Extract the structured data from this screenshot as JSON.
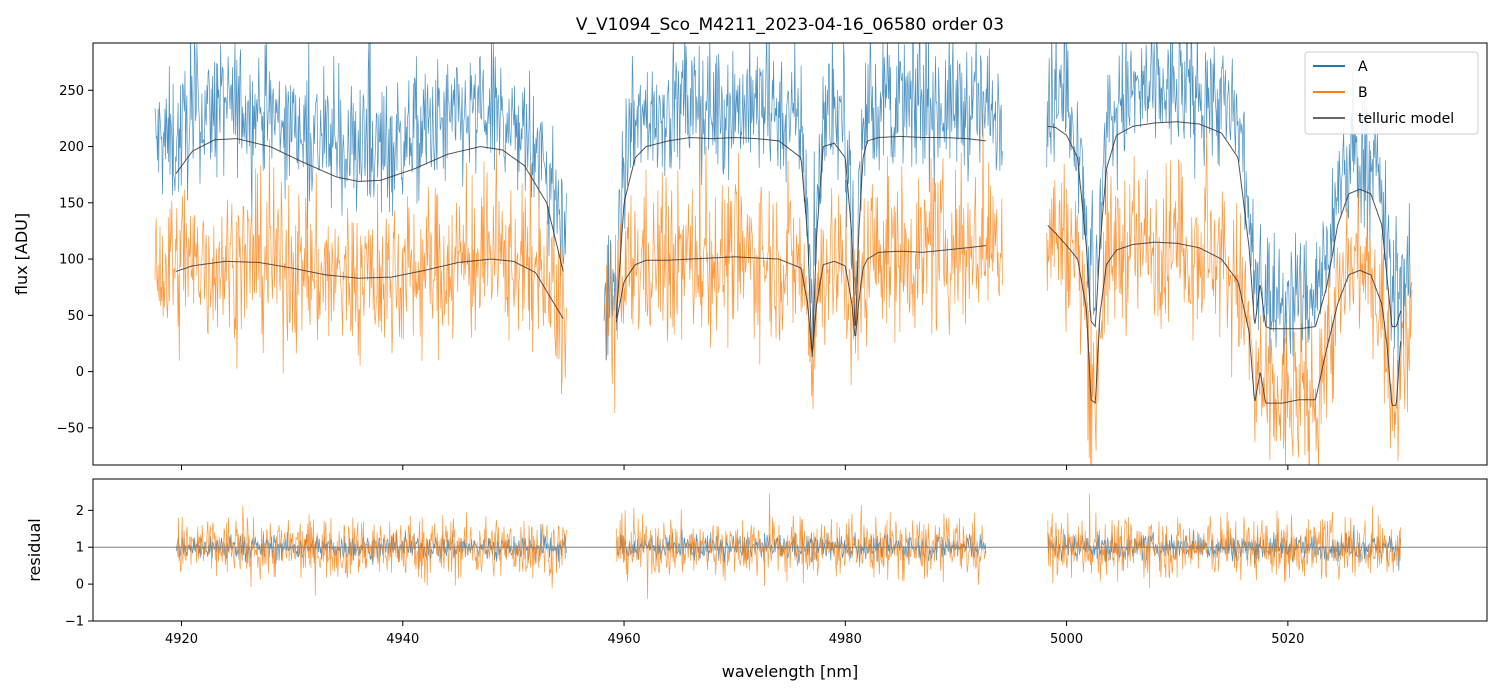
{
  "chart_data": [
    {
      "panel": "flux",
      "type": "line",
      "title": "V_V1094_Sco_M4211_2023-04-16_06580  order 03",
      "xlabel": "",
      "ylabel": "flux [ADU]",
      "xlim": [
        4912,
        5038
      ],
      "ylim": [
        -83,
        292
      ],
      "x_ticks": [
        4920,
        4940,
        4960,
        4980,
        5000,
        5020
      ],
      "x_tick_labels_visible": false,
      "y_ticks": [
        -50,
        0,
        50,
        100,
        150,
        200,
        250
      ],
      "y_tick_labels": [
        "−50",
        "0",
        "50",
        "100",
        "150",
        "200",
        "250"
      ],
      "legend": {
        "placement": "top-right",
        "entries": [
          {
            "label": "A",
            "color": "#1f77b4"
          },
          {
            "label": "B",
            "color": "#ff7f0e"
          },
          {
            "label": "telluric model",
            "color": "#333333"
          }
        ]
      },
      "segments": [
        {
          "x_range": [
            4917.6,
            4954.8
          ]
        },
        {
          "x_range": [
            4958.2,
            4994.2
          ]
        },
        {
          "x_range": [
            4998.2,
            5031.2
          ]
        }
      ],
      "series": [
        {
          "name": "A",
          "color": "#1f77b4",
          "description": "noisy spectrum of nod position A, approximately 20-40 ADU above the upper telluric model",
          "envelope": {
            "typical_range": [
              120,
              290
            ]
          }
        },
        {
          "name": "B",
          "color": "#ff7f0e",
          "description": "noisy spectrum of nod position B, centred on the lower telluric model with wide scatter",
          "envelope": {
            "typical_range": [
              -50,
              190
            ]
          }
        },
        {
          "name": "telluric model",
          "color": "#333333",
          "curves": [
            {
              "label": "model A seg1",
              "x": [
                4919.5,
                4921,
                4923,
                4925,
                4928,
                4931,
                4934,
                4936,
                4938,
                4941,
                4944,
                4947,
                4949,
                4951,
                4953,
                4954.5
              ],
              "y": [
                176,
                196,
                206,
                207,
                200,
                186,
                173,
                169,
                170,
                180,
                193,
                200,
                197,
                183,
                150,
                89
              ]
            },
            {
              "label": "model B seg1",
              "x": [
                4919.5,
                4921,
                4924,
                4927,
                4930,
                4933,
                4936,
                4939,
                4942,
                4945,
                4948,
                4950,
                4952,
                4954.5
              ],
              "y": [
                89,
                94,
                98,
                97,
                92,
                86,
                83,
                84,
                90,
                97,
                100,
                98,
                88,
                47
              ]
            },
            {
              "label": "model A seg2",
              "x": [
                4959.3,
                4960,
                4961,
                4962,
                4964,
                4966,
                4968,
                4970,
                4972,
                4974,
                4976,
                4976.6,
                4977.0,
                4977.4,
                4978,
                4979,
                4980,
                4980.6,
                4980.9,
                4981.2,
                4981.6,
                4982,
                4983,
                4985,
                4987,
                4989,
                4991,
                4992.7
              ],
              "y": [
                48,
                150,
                190,
                200,
                205,
                208,
                207,
                208,
                207,
                205,
                190,
                120,
                8,
                120,
                200,
                203,
                190,
                120,
                30,
                120,
                190,
                205,
                208,
                209,
                208,
                208,
                207,
                205
              ]
            },
            {
              "label": "model B seg2",
              "x": [
                4959.3,
                4960,
                4961,
                4962,
                4964,
                4966,
                4968,
                4970,
                4972,
                4974,
                4976,
                4976.6,
                4977.0,
                4977.4,
                4978,
                4979,
                4980,
                4980.6,
                4980.9,
                4981.2,
                4981.6,
                4982,
                4983,
                4985,
                4987,
                4989,
                4991,
                4992.7
              ],
              "y": [
                44,
                80,
                95,
                99,
                99,
                100,
                101,
                102,
                101,
                100,
                92,
                60,
                15,
                60,
                95,
                98,
                94,
                60,
                28,
                60,
                92,
                100,
                106,
                107,
                106,
                108,
                110,
                112
              ]
            },
            {
              "label": "model A seg3",
              "x": [
                4998.3,
                4999,
                5000,
                5001,
                5001.8,
                5002.2,
                5002.6,
                5003,
                5003.6,
                5004.5,
                5006,
                5008,
                5010,
                5012,
                5014,
                5015.5,
                5016.5,
                5017.0,
                5017.5,
                5018.0,
                5018.5,
                5019.5,
                5021,
                5022.5,
                5023.5,
                5024.5,
                5025.5,
                5026.5,
                5027.5,
                5028.5,
                5029.0,
                5029.4,
                5029.8,
                5030.2
              ],
              "y": [
                218,
                217,
                210,
                190,
                110,
                45,
                40,
                110,
                180,
                210,
                218,
                221,
                222,
                220,
                212,
                190,
                110,
                40,
                78,
                40,
                38,
                38,
                38,
                40,
                75,
                130,
                158,
                162,
                158,
                130,
                80,
                40,
                40,
                54
              ]
            },
            {
              "label": "model B seg3",
              "x": [
                4998.3,
                4999,
                5000,
                5001,
                5001.8,
                5002.2,
                5002.6,
                5003,
                5003.6,
                5004.5,
                5006,
                5008,
                5010,
                5012,
                5014,
                5015.5,
                5016.5,
                5017.0,
                5017.5,
                5018.0,
                5018.5,
                5019.5,
                5021,
                5022.5,
                5023.5,
                5024.5,
                5025.5,
                5026.5,
                5027.5,
                5028.5,
                5029.0,
                5029.4,
                5029.8,
                5030.2
              ],
              "y": [
                130,
                123,
                112,
                100,
                55,
                -25,
                -28,
                50,
                95,
                108,
                113,
                115,
                114,
                110,
                100,
                80,
                35,
                -28,
                0,
                -28,
                -28,
                -28,
                -25,
                -25,
                20,
                60,
                86,
                90,
                86,
                60,
                20,
                -30,
                -30,
                27
              ]
            }
          ]
        }
      ]
    },
    {
      "panel": "residual",
      "type": "line",
      "title": "",
      "xlabel": "wavelength [nm]",
      "ylabel": "residual",
      "xlim": [
        4912,
        5038
      ],
      "ylim": [
        -1,
        2.85
      ],
      "x_ticks": [
        4920,
        4940,
        4960,
        4980,
        5000,
        5020
      ],
      "x_tick_labels": [
        "4920",
        "4940",
        "4960",
        "4980",
        "5000",
        "5020"
      ],
      "y_ticks": [
        -1,
        0,
        1,
        2
      ],
      "y_tick_labels": [
        "−1",
        "0",
        "1",
        "2"
      ],
      "reference_line": {
        "y": 1,
        "color": "#808080"
      },
      "segments": [
        {
          "x_range": [
            4919.5,
            4954.8
          ]
        },
        {
          "x_range": [
            4959.3,
            4992.7
          ]
        },
        {
          "x_range": [
            4998.3,
            5030.2
          ]
        }
      ],
      "series": [
        {
          "name": "A",
          "color": "#1f77b4",
          "description": "residual of A around 1",
          "envelope": {
            "typical_range": [
              0.3,
              1.7
            ]
          }
        },
        {
          "name": "B",
          "color": "#ff7f0e",
          "description": "residual of B around 1, scatter roughly 0 to 2.5",
          "envelope": {
            "typical_range": [
              -0.2,
              2.5
            ]
          }
        }
      ]
    }
  ]
}
